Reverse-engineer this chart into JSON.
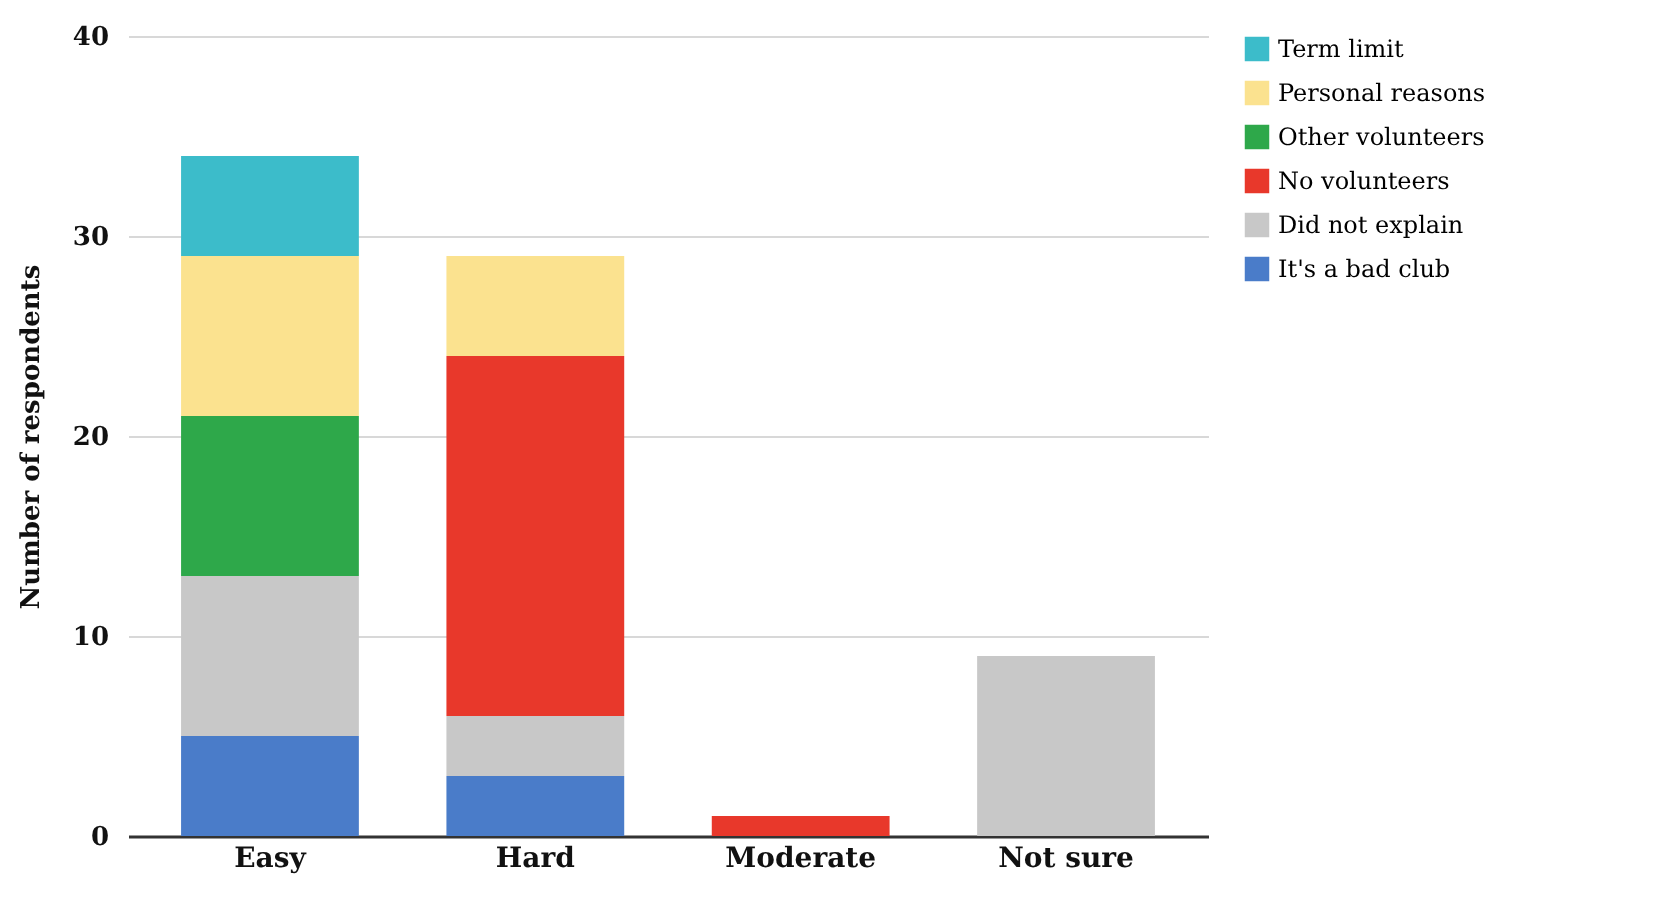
{
  "chart_data": {
    "type": "bar",
    "stacked": true,
    "ylabel": "Number of respondents",
    "categories": [
      "Easy",
      "Hard",
      "Moderate",
      "Not sure"
    ],
    "ylim": [
      0,
      40
    ],
    "yticks": [
      0,
      10,
      20,
      30,
      40
    ],
    "grid": "y",
    "legend": "top right",
    "series": [
      {
        "name": "It's a bad club",
        "color": "#4a7cc9",
        "values": [
          5,
          3,
          null,
          null
        ]
      },
      {
        "name": "Did not explain",
        "color": "#c8c8c8",
        "values": [
          8,
          3,
          null,
          9
        ]
      },
      {
        "name": "No volunteers",
        "color": "#e8382b",
        "values": [
          null,
          18,
          1,
          null
        ]
      },
      {
        "name": "Other volunteers",
        "color": "#2ea84a",
        "values": [
          8,
          null,
          null,
          null
        ]
      },
      {
        "name": "Personal reasons",
        "color": "#fbe28f",
        "values": [
          8,
          5,
          null,
          null
        ]
      },
      {
        "name": "Term limit",
        "color": "#3cbcca",
        "values": [
          5,
          null,
          null,
          null
        ]
      }
    ]
  }
}
